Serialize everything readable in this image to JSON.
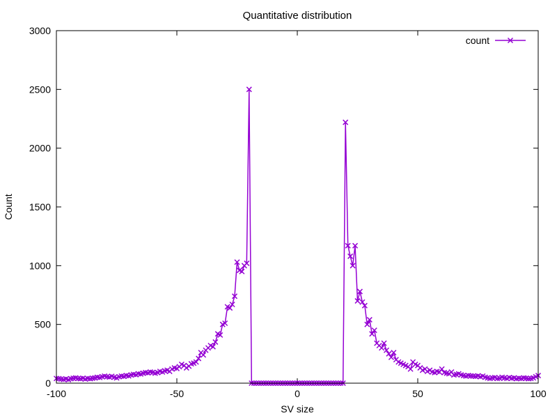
{
  "chart_data": {
    "type": "line",
    "title": "Quantitative distribution",
    "xlabel": "SV size",
    "ylabel": "Count",
    "xlim": [
      -100,
      100
    ],
    "ylim": [
      0,
      3000
    ],
    "x_ticks": [
      "-100",
      "-50",
      "0",
      "50",
      "100"
    ],
    "y_ticks": [
      "0",
      "500",
      "1000",
      "1500",
      "2000",
      "2500",
      "3000"
    ],
    "legend_position": "top-right",
    "series": [
      {
        "name": "count",
        "color": "#9400d3",
        "marker": "x",
        "points": [
          [
            -100,
            40
          ],
          [
            -99,
            38
          ],
          [
            -98,
            35
          ],
          [
            -97,
            32
          ],
          [
            -96,
            36
          ],
          [
            -95,
            30
          ],
          [
            -94,
            38
          ],
          [
            -93,
            42
          ],
          [
            -92,
            45
          ],
          [
            -91,
            40
          ],
          [
            -90,
            38
          ],
          [
            -89,
            42
          ],
          [
            -88,
            35
          ],
          [
            -87,
            40
          ],
          [
            -86,
            38
          ],
          [
            -85,
            42
          ],
          [
            -84,
            45
          ],
          [
            -83,
            50
          ],
          [
            -82,
            48
          ],
          [
            -81,
            55
          ],
          [
            -80,
            60
          ],
          [
            -79,
            55
          ],
          [
            -78,
            52
          ],
          [
            -77,
            58
          ],
          [
            -76,
            50
          ],
          [
            -75,
            45
          ],
          [
            -74,
            55
          ],
          [
            -73,
            60
          ],
          [
            -72,
            58
          ],
          [
            -71,
            65
          ],
          [
            -70,
            62
          ],
          [
            -69,
            70
          ],
          [
            -68,
            75
          ],
          [
            -67,
            72
          ],
          [
            -66,
            80
          ],
          [
            -65,
            78
          ],
          [
            -64,
            85
          ],
          [
            -63,
            90
          ],
          [
            -62,
            88
          ],
          [
            -61,
            95
          ],
          [
            -60,
            92
          ],
          [
            -59,
            85
          ],
          [
            -58,
            90
          ],
          [
            -57,
            100
          ],
          [
            -56,
            95
          ],
          [
            -55,
            105
          ],
          [
            -54,
            110
          ],
          [
            -53,
            100
          ],
          [
            -52,
            120
          ],
          [
            -51,
            130
          ],
          [
            -50,
            125
          ],
          [
            -49,
            140
          ],
          [
            -48,
            160
          ],
          [
            -47,
            150
          ],
          [
            -46,
            130
          ],
          [
            -45,
            145
          ],
          [
            -44,
            165
          ],
          [
            -43,
            170
          ],
          [
            -42,
            180
          ],
          [
            -41,
            210
          ],
          [
            -40,
            260
          ],
          [
            -39,
            240
          ],
          [
            -38,
            280
          ],
          [
            -37,
            300
          ],
          [
            -36,
            320
          ],
          [
            -35,
            310
          ],
          [
            -34,
            350
          ],
          [
            -33,
            420
          ],
          [
            -32,
            410
          ],
          [
            -31,
            500
          ],
          [
            -30,
            510
          ],
          [
            -29,
            650
          ],
          [
            -28,
            640
          ],
          [
            -27,
            670
          ],
          [
            -26,
            740
          ],
          [
            -25,
            1030
          ],
          [
            -24,
            960
          ],
          [
            -23,
            950
          ],
          [
            -22,
            1000
          ],
          [
            -21,
            1020
          ],
          [
            -20,
            2500
          ],
          [
            -19,
            0
          ],
          [
            -18,
            0
          ],
          [
            -17,
            0
          ],
          [
            -16,
            0
          ],
          [
            -15,
            0
          ],
          [
            -14,
            0
          ],
          [
            -13,
            0
          ],
          [
            -12,
            0
          ],
          [
            -11,
            0
          ],
          [
            -10,
            0
          ],
          [
            -9,
            0
          ],
          [
            -8,
            0
          ],
          [
            -7,
            0
          ],
          [
            -6,
            0
          ],
          [
            -5,
            0
          ],
          [
            -4,
            0
          ],
          [
            -3,
            0
          ],
          [
            -2,
            0
          ],
          [
            -1,
            0
          ],
          [
            0,
            0
          ],
          [
            1,
            0
          ],
          [
            2,
            0
          ],
          [
            3,
            0
          ],
          [
            4,
            0
          ],
          [
            5,
            0
          ],
          [
            6,
            0
          ],
          [
            7,
            0
          ],
          [
            8,
            0
          ],
          [
            9,
            0
          ],
          [
            10,
            0
          ],
          [
            11,
            0
          ],
          [
            12,
            0
          ],
          [
            13,
            0
          ],
          [
            14,
            0
          ],
          [
            15,
            0
          ],
          [
            16,
            0
          ],
          [
            17,
            0
          ],
          [
            18,
            0
          ],
          [
            19,
            0
          ],
          [
            20,
            2220
          ],
          [
            21,
            1170
          ],
          [
            22,
            1080
          ],
          [
            23,
            1000
          ],
          [
            24,
            1170
          ],
          [
            25,
            700
          ],
          [
            26,
            780
          ],
          [
            27,
            690
          ],
          [
            28,
            660
          ],
          [
            29,
            500
          ],
          [
            30,
            540
          ],
          [
            31,
            420
          ],
          [
            32,
            450
          ],
          [
            33,
            340
          ],
          [
            34,
            320
          ],
          [
            35,
            300
          ],
          [
            36,
            340
          ],
          [
            37,
            280
          ],
          [
            38,
            250
          ],
          [
            39,
            220
          ],
          [
            40,
            260
          ],
          [
            41,
            200
          ],
          [
            42,
            180
          ],
          [
            43,
            170
          ],
          [
            44,
            160
          ],
          [
            45,
            150
          ],
          [
            46,
            140
          ],
          [
            47,
            120
          ],
          [
            48,
            180
          ],
          [
            49,
            160
          ],
          [
            50,
            150
          ],
          [
            51,
            130
          ],
          [
            52,
            110
          ],
          [
            53,
            120
          ],
          [
            54,
            100
          ],
          [
            55,
            110
          ],
          [
            56,
            95
          ],
          [
            57,
            90
          ],
          [
            58,
            100
          ],
          [
            59,
            95
          ],
          [
            60,
            120
          ],
          [
            61,
            90
          ],
          [
            62,
            85
          ],
          [
            63,
            80
          ],
          [
            64,
            95
          ],
          [
            65,
            70
          ],
          [
            66,
            75
          ],
          [
            67,
            80
          ],
          [
            68,
            70
          ],
          [
            69,
            65
          ],
          [
            70,
            60
          ],
          [
            71,
            65
          ],
          [
            72,
            62
          ],
          [
            73,
            60
          ],
          [
            74,
            58
          ],
          [
            75,
            62
          ],
          [
            76,
            55
          ],
          [
            77,
            60
          ],
          [
            78,
            50
          ],
          [
            79,
            45
          ],
          [
            80,
            40
          ],
          [
            81,
            45
          ],
          [
            82,
            48
          ],
          [
            83,
            40
          ],
          [
            84,
            42
          ],
          [
            85,
            50
          ],
          [
            86,
            45
          ],
          [
            87,
            40
          ],
          [
            88,
            48
          ],
          [
            89,
            42
          ],
          [
            90,
            45
          ],
          [
            91,
            38
          ],
          [
            92,
            42
          ],
          [
            93,
            40
          ],
          [
            94,
            45
          ],
          [
            95,
            42
          ],
          [
            96,
            38
          ],
          [
            97,
            40
          ],
          [
            98,
            45
          ],
          [
            99,
            55
          ],
          [
            100,
            65
          ]
        ]
      }
    ]
  }
}
